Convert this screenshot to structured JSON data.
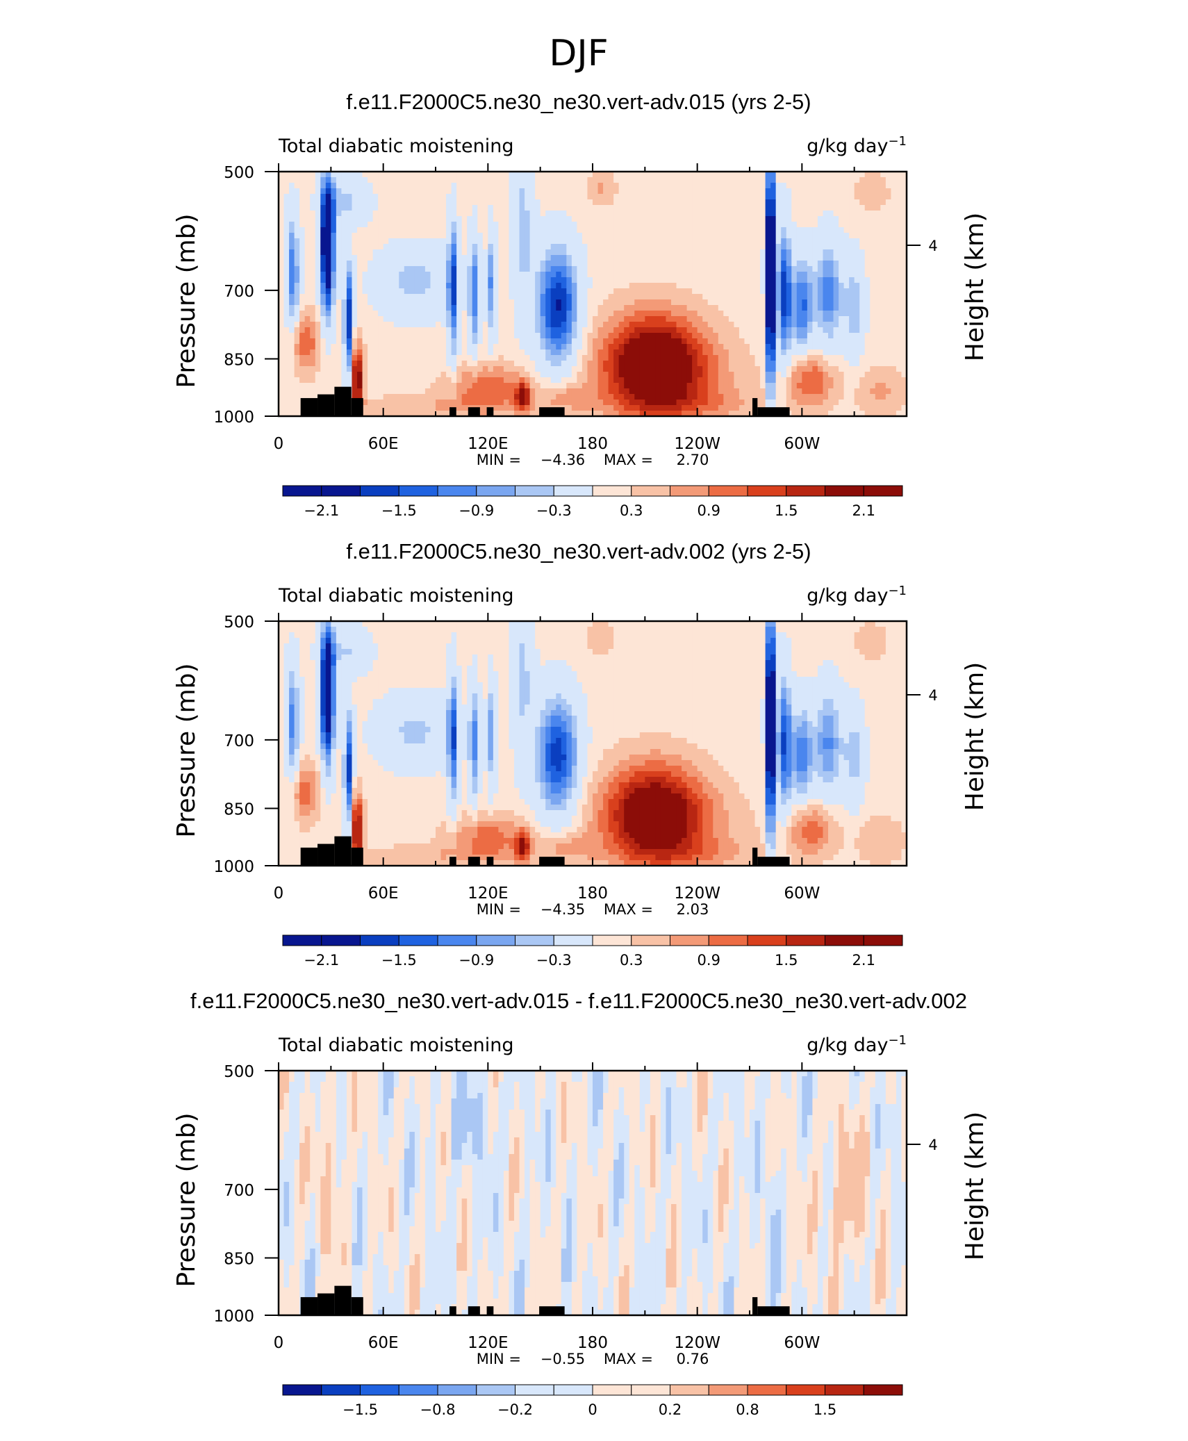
{
  "figure_title": "DJF",
  "colors": {
    "blues": [
      "#08168f",
      "#0a3fc0",
      "#1f62e0",
      "#4a86ee",
      "#7aa6f0",
      "#aac7f4",
      "#d8e7fb"
    ],
    "reds": [
      "#fde5d6",
      "#f8c2a6",
      "#f39a77",
      "#ec6c44",
      "#d9401d",
      "#b82612",
      "#8c0d08"
    ],
    "terrain": "#000000"
  },
  "chart_data": [
    {
      "type": "heatmap",
      "title": "f.e11.F2000C5.ne30_ne30.vert-adv.015 (yrs 2-5)",
      "left_label": "Total diabatic moistening",
      "units": "g/kg day",
      "units_exp": "−1",
      "ylabel": "Pressure (mb)",
      "ylabel_right": "Height (km)",
      "yticks": [
        "500",
        "700",
        "850",
        "1000"
      ],
      "yticks_right": [
        "4"
      ],
      "xticks": [
        "0",
        "60E",
        "120E",
        "180",
        "120W",
        "60W"
      ],
      "min_label": "MIN =",
      "min": "−4.36",
      "max_label": "MAX =",
      "max": "2.70",
      "colorbar_labels": [
        "−2.1",
        "−1.5",
        "−0.9",
        "−0.3",
        "0.3",
        "0.9",
        "1.5",
        "2.1"
      ]
    },
    {
      "type": "heatmap",
      "title": "f.e11.F2000C5.ne30_ne30.vert-adv.002 (yrs 2-5)",
      "left_label": "Total diabatic moistening",
      "units": "g/kg day",
      "units_exp": "−1",
      "ylabel": "Pressure (mb)",
      "ylabel_right": "Height (km)",
      "yticks": [
        "500",
        "700",
        "850",
        "1000"
      ],
      "yticks_right": [
        "4"
      ],
      "xticks": [
        "0",
        "60E",
        "120E",
        "180",
        "120W",
        "60W"
      ],
      "min_label": "MIN =",
      "min": "−4.35",
      "max_label": "MAX =",
      "max": "2.03",
      "colorbar_labels": [
        "−2.1",
        "−1.5",
        "−0.9",
        "−0.3",
        "0.3",
        "0.9",
        "1.5",
        "2.1"
      ]
    },
    {
      "type": "heatmap",
      "title": "f.e11.F2000C5.ne30_ne30.vert-adv.015 - f.e11.F2000C5.ne30_ne30.vert-adv.002",
      "left_label": "Total diabatic moistening",
      "units": "g/kg day",
      "units_exp": "−1",
      "ylabel": "Pressure (mb)",
      "ylabel_right": "Height (km)",
      "yticks": [
        "500",
        "700",
        "850",
        "1000"
      ],
      "yticks_right": [
        "4"
      ],
      "xticks": [
        "0",
        "60E",
        "120E",
        "180",
        "120W",
        "60W"
      ],
      "min_label": "MIN =",
      "min": "−0.55",
      "max_label": "MAX =",
      "max": "0.76",
      "colorbar_labels": [
        "−1.5",
        "−0.8",
        "−0.2",
        "0",
        "0.2",
        "0.8",
        "1.5"
      ]
    }
  ]
}
